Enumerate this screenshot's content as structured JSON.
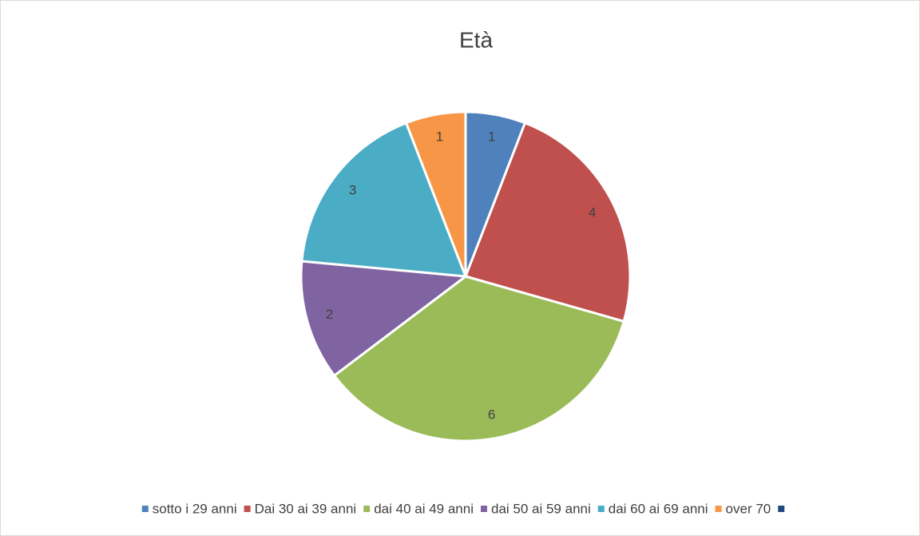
{
  "chart_data": {
    "type": "pie",
    "title": "Età",
    "categories": [
      "sotto i 29 anni",
      "Dai 30 ai 39 anni",
      "dai 40 ai 49 anni",
      "dai 50 ai 59 anni",
      "dai 60 ai 69 anni",
      "over 70",
      null
    ],
    "values": [
      1,
      4,
      6,
      2,
      3,
      1,
      null
    ],
    "colors": [
      "#4f81bd",
      "#c0504d",
      "#9bbb59",
      "#8064a2",
      "#4bacc6",
      "#f79646",
      "#1f497d"
    ],
    "legend": "bottom"
  }
}
